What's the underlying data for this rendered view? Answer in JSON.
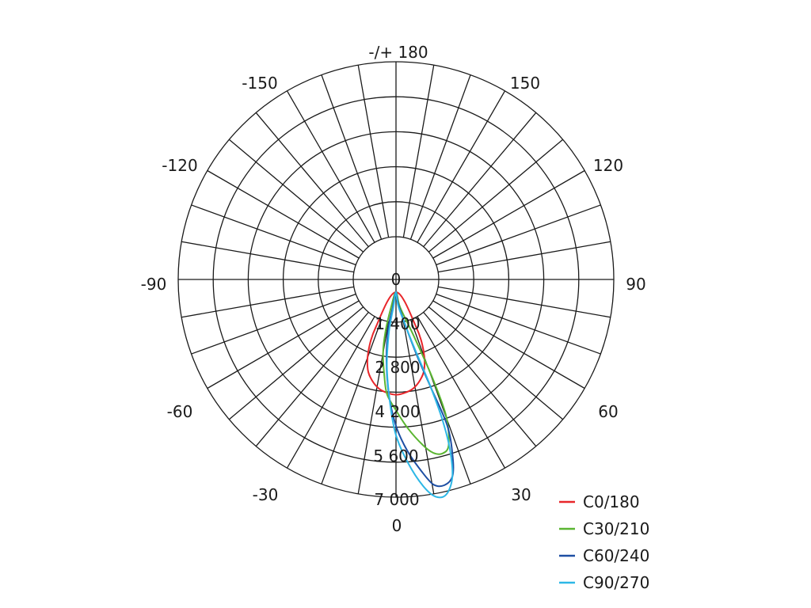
{
  "chart_data": {
    "type": "polar",
    "angle_labels": [
      {
        "angle": 180,
        "text": "-/+ 180"
      },
      {
        "angle": -150,
        "text": "-150"
      },
      {
        "angle": 150,
        "text": "150"
      },
      {
        "angle": -120,
        "text": "-120"
      },
      {
        "angle": 120,
        "text": "120"
      },
      {
        "angle": -90,
        "text": "-90"
      },
      {
        "angle": 90,
        "text": "90"
      },
      {
        "angle": -60,
        "text": "-60"
      },
      {
        "angle": 60,
        "text": "60"
      },
      {
        "angle": -30,
        "text": "-30"
      },
      {
        "angle": 30,
        "text": "30"
      },
      {
        "angle": 0,
        "text": "0"
      }
    ],
    "ring_values": [
      0,
      1400,
      2800,
      4200,
      5600,
      7000
    ],
    "ring_labels": [
      "0",
      "1 400",
      "2 800",
      "4 200",
      "5 600",
      "7 000"
    ],
    "radial_max": 7000,
    "spoke_step_deg": 10,
    "series": [
      {
        "name": "C0/180",
        "color": "#e8262a",
        "points": [
          [
            -30,
            1300
          ],
          [
            -25,
            2100
          ],
          [
            -20,
            2650
          ],
          [
            -15,
            2950
          ],
          [
            -10,
            3150
          ],
          [
            -5,
            3250
          ],
          [
            0,
            3300
          ],
          [
            5,
            3250
          ],
          [
            10,
            3150
          ],
          [
            15,
            2950
          ],
          [
            20,
            2650
          ],
          [
            25,
            2100
          ],
          [
            30,
            1300
          ]
        ]
      },
      {
        "name": "C30/210",
        "color": "#5ab531",
        "points": [
          [
            -18,
            500
          ],
          [
            -15,
            1300
          ],
          [
            -12,
            2000
          ],
          [
            -8,
            2700
          ],
          [
            -5,
            3300
          ],
          [
            0,
            3800
          ],
          [
            5,
            4400
          ],
          [
            10,
            5000
          ],
          [
            13,
            5300
          ],
          [
            16,
            5400
          ],
          [
            19,
            5200
          ],
          [
            22,
            4300
          ],
          [
            23,
            3000
          ],
          [
            22,
            1500
          ],
          [
            15,
            500
          ]
        ]
      },
      {
        "name": "C60/240",
        "color": "#1e4fa3",
        "points": [
          [
            -12,
            500
          ],
          [
            -12,
            1200
          ],
          [
            -8,
            2200
          ],
          [
            -4,
            3300
          ],
          [
            0,
            4300
          ],
          [
            4,
            5100
          ],
          [
            8,
            5800
          ],
          [
            11,
            6300
          ],
          [
            14,
            6400
          ],
          [
            17,
            6200
          ],
          [
            19,
            5600
          ],
          [
            21,
            4600
          ],
          [
            20,
            3200
          ],
          [
            18,
            2000
          ],
          [
            12,
            500
          ]
        ]
      },
      {
        "name": "C90/270",
        "color": "#2db7e6",
        "points": [
          [
            -10,
            500
          ],
          [
            -10,
            1300
          ],
          [
            -7,
            2400
          ],
          [
            -3,
            3600
          ],
          [
            0,
            4600
          ],
          [
            4,
            5500
          ],
          [
            8,
            6300
          ],
          [
            11,
            6700
          ],
          [
            14,
            6700
          ],
          [
            17,
            6200
          ],
          [
            19,
            5300
          ],
          [
            20,
            4300
          ],
          [
            20,
            3100
          ],
          [
            18,
            1800
          ],
          [
            10,
            500
          ]
        ]
      }
    ]
  }
}
